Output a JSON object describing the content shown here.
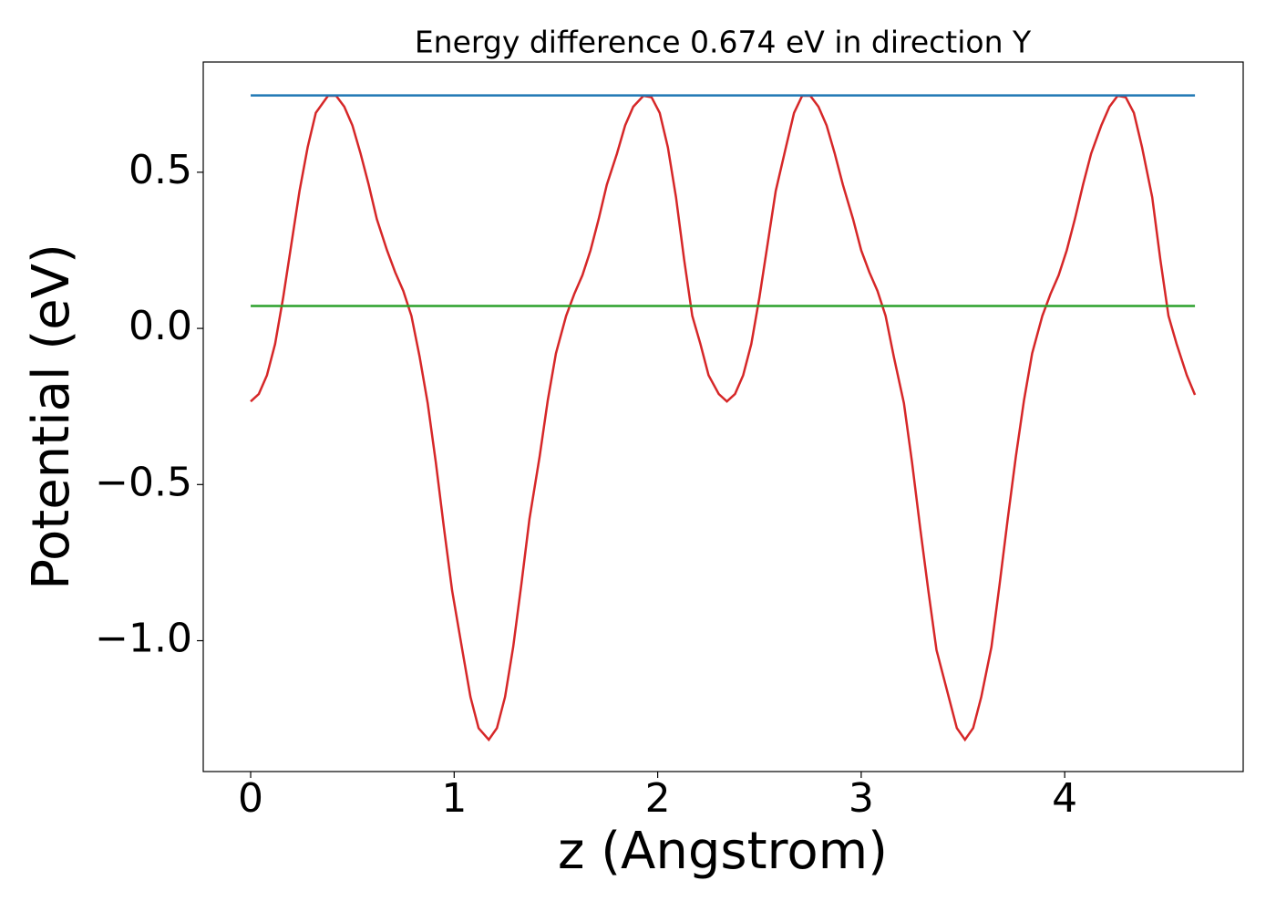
{
  "chart_data": {
    "type": "line",
    "title": "Energy difference 0.674 eV in direction Y",
    "xlabel": "z (Angstrom)",
    "ylabel": "Potential (eV)",
    "xlim": [
      -0.233,
      4.877
    ],
    "ylim": [
      -1.419,
      0.853
    ],
    "xticks": [
      0,
      1,
      2,
      3,
      4
    ],
    "yticks": [
      {
        "value": -1.0,
        "label": "−1.0"
      },
      {
        "value": -0.5,
        "label": "−0.5"
      },
      {
        "value": 0.0,
        "label": "0.0"
      },
      0.5
    ],
    "grid": false,
    "series": [
      {
        "color": "#d62728",
        "x": [
          0,
          0.04,
          0.08,
          0.12,
          0.16,
          0.2,
          0.24,
          0.28,
          0.32,
          0.38,
          0.42,
          0.46,
          0.5,
          0.54,
          0.58,
          0.62,
          0.67,
          0.71,
          0.75,
          0.79,
          0.83,
          0.87,
          0.91,
          0.95,
          0.99,
          1.04,
          1.08,
          1.12,
          1.17,
          1.21,
          1.25,
          1.29,
          1.33,
          1.37,
          1.42,
          1.46,
          1.5,
          1.55,
          1.59,
          1.63,
          1.67,
          1.71,
          1.75,
          1.8,
          1.84,
          1.88,
          1.93,
          1.97,
          2.01,
          2.05,
          2.09,
          2.13,
          2.17,
          2.21,
          2.25,
          2.3,
          2.34,
          2.38,
          2.42,
          2.46,
          2.5,
          2.54,
          2.58,
          2.63,
          2.67,
          2.71,
          2.75,
          2.79,
          2.83,
          2.87,
          2.91,
          2.96,
          3.0,
          3.04,
          3.08,
          3.12,
          3.16,
          3.21,
          3.25,
          3.29,
          3.33,
          3.37,
          3.43,
          3.47,
          3.51,
          3.55,
          3.59,
          3.64,
          3.68,
          3.72,
          3.76,
          3.8,
          3.84,
          3.89,
          3.93,
          3.97,
          4.01,
          4.05,
          4.09,
          4.13,
          4.18,
          4.22,
          4.26,
          4.3,
          4.34,
          4.38,
          4.43,
          4.47,
          4.51,
          4.55,
          4.6,
          4.64
        ],
        "values": [
          -0.234,
          -0.21,
          -0.15,
          -0.05,
          0.1,
          0.27,
          0.44,
          0.58,
          0.69,
          0.745,
          0.745,
          0.71,
          0.65,
          0.56,
          0.46,
          0.35,
          0.25,
          0.18,
          0.12,
          0.04,
          -0.09,
          -0.24,
          -0.43,
          -0.64,
          -0.84,
          -1.03,
          -1.18,
          -1.28,
          -1.317,
          -1.28,
          -1.18,
          -1.02,
          -0.82,
          -0.61,
          -0.41,
          -0.23,
          -0.08,
          0.04,
          0.11,
          0.17,
          0.25,
          0.35,
          0.46,
          0.56,
          0.65,
          0.71,
          0.745,
          0.74,
          0.69,
          0.58,
          0.42,
          0.22,
          0.04,
          -0.05,
          -0.15,
          -0.21,
          -0.234,
          -0.21,
          -0.15,
          -0.05,
          0.1,
          0.27,
          0.44,
          0.58,
          0.69,
          0.745,
          0.745,
          0.71,
          0.65,
          0.56,
          0.46,
          0.35,
          0.25,
          0.18,
          0.12,
          0.04,
          -0.09,
          -0.24,
          -0.43,
          -0.64,
          -0.84,
          -1.03,
          -1.18,
          -1.28,
          -1.317,
          -1.28,
          -1.18,
          -1.02,
          -0.82,
          -0.61,
          -0.41,
          -0.23,
          -0.08,
          0.04,
          0.11,
          0.17,
          0.25,
          0.35,
          0.46,
          0.56,
          0.65,
          0.71,
          0.745,
          0.74,
          0.69,
          0.58,
          0.42,
          0.22,
          0.04,
          -0.05,
          -0.15,
          -0.213
        ]
      },
      {
        "color": "#1f77b4",
        "x": [
          0,
          4.64
        ],
        "values": [
          0.746,
          0.746
        ]
      },
      {
        "color": "#2ca02c",
        "x": [
          0,
          4.64
        ],
        "values": [
          0.072,
          0.072
        ]
      }
    ]
  }
}
